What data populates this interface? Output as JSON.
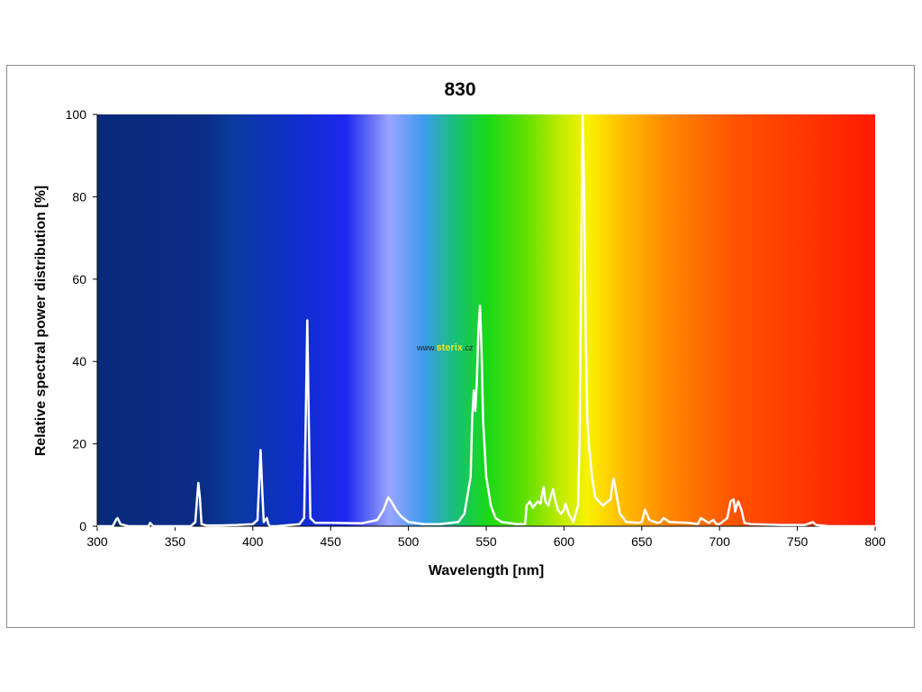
{
  "chart_data": {
    "type": "line",
    "title": "830",
    "xlabel": "Wavelength [nm]",
    "ylabel": "Relative spectral power distribution [%]",
    "xlim": [
      300,
      800
    ],
    "ylim": [
      0,
      100
    ],
    "x_ticks": [
      300,
      350,
      400,
      450,
      500,
      550,
      600,
      650,
      700,
      750,
      800
    ],
    "y_ticks": [
      0,
      20,
      40,
      60,
      80,
      100
    ],
    "grid": false,
    "background": "visible-spectrum color gradient",
    "line_color": "#ffffff",
    "series": [
      {
        "x": [
          300,
          310,
          312,
          313,
          315,
          320,
          333,
          334,
          336,
          340,
          360,
          363,
          365,
          366,
          367,
          370,
          380,
          390,
          400,
          403,
          405,
          406,
          407,
          409,
          410,
          411,
          415,
          430,
          433,
          435,
          436,
          437,
          440,
          450,
          470,
          480,
          484,
          487,
          489,
          492,
          495,
          500,
          510,
          520,
          532,
          536,
          540,
          541,
          542,
          543,
          544,
          545,
          546,
          547,
          548,
          550,
          553,
          556,
          560,
          570,
          575,
          576,
          578,
          580,
          583,
          585,
          586,
          587,
          588,
          590,
          592,
          593,
          594,
          596,
          598,
          600,
          601,
          603,
          606,
          609,
          610,
          611,
          612,
          613,
          614,
          615,
          616,
          618,
          620,
          625,
          628,
          630,
          631,
          632,
          634,
          636,
          640,
          648,
          650,
          652,
          655,
          660,
          662,
          664,
          668,
          680,
          686,
          688,
          690,
          693,
          696,
          698,
          700,
          705,
          707,
          709,
          710,
          711,
          712,
          714,
          716,
          720,
          740,
          755,
          760,
          762,
          770,
          800
        ],
        "y": [
          0,
          0,
          1.5,
          2,
          0.5,
          0,
          0,
          0.8,
          0,
          0,
          0,
          1,
          10.5,
          7,
          0.5,
          0.2,
          0.2,
          0.3,
          0.5,
          1.5,
          18.5,
          9,
          1,
          2,
          0.5,
          0,
          0,
          0.5,
          2,
          50,
          25,
          2,
          0.8,
          0.8,
          0.7,
          1.5,
          4,
          7,
          6,
          4,
          2.5,
          1,
          0.5,
          0.5,
          1,
          3,
          12,
          26,
          33,
          28,
          35,
          48,
          53.5,
          43,
          26,
          12,
          5,
          2,
          1,
          0.5,
          0.5,
          5,
          6,
          4.5,
          6,
          5.5,
          8,
          9.5,
          6,
          5,
          8,
          9,
          7,
          4,
          3,
          4,
          5.5,
          3,
          1,
          5,
          20,
          60,
          100,
          80,
          45,
          26,
          20,
          12,
          7,
          5,
          6,
          6.5,
          10,
          11.5,
          7,
          3,
          1,
          0.8,
          1,
          4,
          1.5,
          0.8,
          1,
          2,
          1,
          0.8,
          0.5,
          2,
          1.5,
          0.8,
          1.5,
          0.5,
          0.5,
          2,
          6,
          6.5,
          3.5,
          5,
          6,
          4,
          0.8,
          0.5,
          0.3,
          0.3,
          1,
          0.3,
          0,
          0
        ]
      }
    ]
  },
  "watermark": {
    "prefix": "www.",
    "brand": "sterix",
    "suffix": ".cz"
  },
  "colors": {
    "spectrum_violet": "#0a2a80",
    "spectrum_blue": "#1020e8",
    "spectrum_green": "#18d818",
    "spectrum_yellow": "#f4f000",
    "spectrum_red": "#ff1a00"
  }
}
